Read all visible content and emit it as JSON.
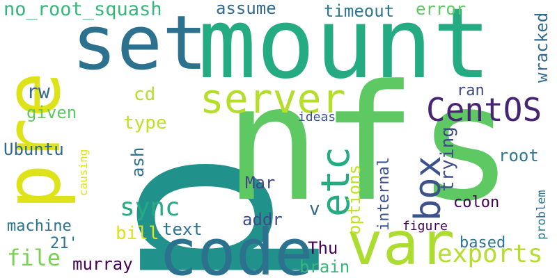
{
  "words": [
    {
      "id": "p",
      "text": "p",
      "color": "#21918c"
    },
    {
      "id": "nfs",
      "text": "nfs",
      "color": "#5ec962"
    },
    {
      "id": "mount",
      "text": "mount",
      "color": "#25ab82"
    },
    {
      "id": "set",
      "text": "set",
      "color": "#2c728e"
    },
    {
      "id": "pre",
      "text": "pre",
      "color": "#dde318"
    },
    {
      "id": "code",
      "text": "code",
      "color": "#2c728e"
    },
    {
      "id": "var",
      "text": "var",
      "color": "#addc30"
    },
    {
      "id": "server",
      "text": "server",
      "color": "#b5de2b"
    },
    {
      "id": "centos",
      "text": "CentOS",
      "color": "#482475"
    },
    {
      "id": "etc",
      "text": "etc",
      "color": "#25ab82"
    },
    {
      "id": "box",
      "text": "box",
      "color": "#3b528b"
    },
    {
      "id": "exports",
      "text": "exports",
      "color": "#b5de2b"
    },
    {
      "id": "sync",
      "text": "sync",
      "color": "#25ab82"
    },
    {
      "id": "no-root-squash",
      "text": "no_root_squash",
      "color": "#35b779"
    },
    {
      "id": "assume",
      "text": "assume",
      "color": "#31688e"
    },
    {
      "id": "timeout",
      "text": "timeout",
      "color": "#2a788e"
    },
    {
      "id": "error",
      "text": "error",
      "color": "#5ec962"
    },
    {
      "id": "wracked",
      "text": "wracked",
      "color": "#31688e"
    },
    {
      "id": "rw",
      "text": "rw",
      "color": "#31688e"
    },
    {
      "id": "given",
      "text": "given",
      "color": "#5ec962"
    },
    {
      "id": "cd",
      "text": "cd",
      "color": "#b5de2b"
    },
    {
      "id": "type",
      "text": "type",
      "color": "#c2df23"
    },
    {
      "id": "ubuntu",
      "text": "Ubuntu",
      "color": "#31688e"
    },
    {
      "id": "causing",
      "text": "causing",
      "color": "#dde318"
    },
    {
      "id": "ash",
      "text": "ash",
      "color": "#2c728e"
    },
    {
      "id": "ideas",
      "text": "ideas",
      "color": "#3b528b"
    },
    {
      "id": "ran",
      "text": "ran",
      "color": "#3e4a89"
    },
    {
      "id": "trying",
      "text": "trying",
      "color": "#3e4a89"
    },
    {
      "id": "root",
      "text": "root",
      "color": "#2a788e"
    },
    {
      "id": "internal",
      "text": "internal",
      "color": "#3b528b"
    },
    {
      "id": "options",
      "text": "options",
      "color": "#c2df23"
    },
    {
      "id": "mar",
      "text": "Mar",
      "color": "#414487"
    },
    {
      "id": "colon",
      "text": "colon",
      "color": "#440154"
    },
    {
      "id": "problem",
      "text": "problem",
      "color": "#2a788e"
    },
    {
      "id": "addr",
      "text": "addr",
      "color": "#3e4a89"
    },
    {
      "id": "v",
      "text": "v",
      "color": "#31688e"
    },
    {
      "id": "text",
      "text": "text",
      "color": "#2c728e"
    },
    {
      "id": "machine",
      "text": "machine",
      "color": "#2c728e"
    },
    {
      "id": "bill",
      "text": "bill",
      "color": "#dde318"
    },
    {
      "id": "figure",
      "text": "figure",
      "color": "#440154"
    },
    {
      "id": "21",
      "text": "21'",
      "color": "#2c728e"
    },
    {
      "id": "file",
      "text": "file",
      "color": "#7ad151"
    },
    {
      "id": "murray",
      "text": "murray",
      "color": "#440154"
    },
    {
      "id": "thu",
      "text": "Thu",
      "color": "#440154"
    },
    {
      "id": "based",
      "text": "based",
      "color": "#2c728e"
    },
    {
      "id": "brain",
      "text": "brain",
      "color": "#35b779"
    }
  ]
}
